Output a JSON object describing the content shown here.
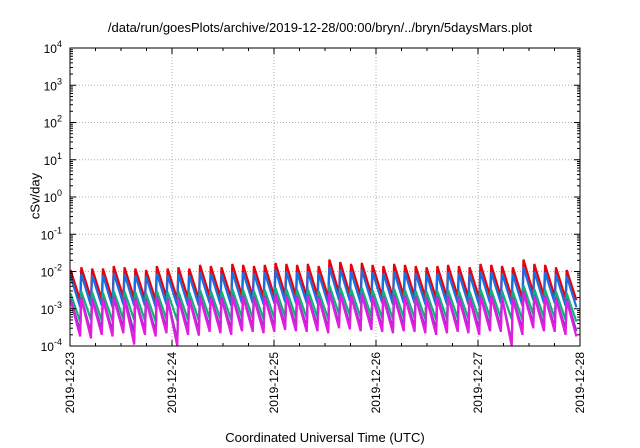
{
  "chart_data": {
    "type": "line",
    "title": "/data/run/goesPlots/archive/2019-12-28/00:00/bryn/../bryn/5daysMars.plot",
    "xlabel": "Coordinated Universal Time (UTC)",
    "ylabel": "cSv/day",
    "yscale": "log",
    "ylim": [
      0.0001,
      10000
    ],
    "y_ticks": [
      {
        "base": "10",
        "exp": "4"
      },
      {
        "base": "10",
        "exp": "3"
      },
      {
        "base": "10",
        "exp": "2"
      },
      {
        "base": "10",
        "exp": "1"
      },
      {
        "base": "10",
        "exp": "0"
      },
      {
        "base": "10",
        "exp": "-1"
      },
      {
        "base": "10",
        "exp": "-2"
      },
      {
        "base": "10",
        "exp": "-3"
      },
      {
        "base": "10",
        "exp": "-4"
      }
    ],
    "x_ticks": [
      "2019-12-23",
      "2019-12-24",
      "2019-12-25",
      "2019-12-26",
      "2019-12-27",
      "2019-12-28"
    ],
    "xlim": [
      "2019-12-23",
      "2019-12-28"
    ],
    "grid": true,
    "series": [
      {
        "color": "#e8000b",
        "peaks": [
          0.011,
          0.013,
          0.012,
          0.012,
          0.014,
          0.013,
          0.012,
          0.011,
          0.014,
          0.012,
          0.013,
          0.012,
          0.015,
          0.014,
          0.013,
          0.016,
          0.015,
          0.014,
          0.015,
          0.017,
          0.016,
          0.015,
          0.016,
          0.014,
          0.021,
          0.018,
          0.016,
          0.017,
          0.015,
          0.014,
          0.016,
          0.015,
          0.014,
          0.013,
          0.014,
          0.015,
          0.014,
          0.013,
          0.016,
          0.015,
          0.014,
          0.013,
          0.021,
          0.016,
          0.015,
          0.013,
          0.011
        ],
        "troughs": [
          0.0017,
          0.0019,
          0.0018,
          0.0017,
          0.002,
          0.0019,
          0.0018,
          0.0017,
          0.002,
          0.0018,
          0.0019,
          0.0018,
          0.0021,
          0.002,
          0.0019,
          0.0022,
          0.0021,
          0.002,
          0.0021,
          0.0023,
          0.0022,
          0.0021,
          0.0022,
          0.002,
          0.0026,
          0.0024,
          0.0022,
          0.0023,
          0.0021,
          0.002,
          0.0022,
          0.0021,
          0.002,
          0.0019,
          0.002,
          0.0021,
          0.002,
          0.0019,
          0.0022,
          0.0021,
          0.002,
          0.0019,
          0.0026,
          0.0022,
          0.0021,
          0.0019,
          0.0017
        ]
      },
      {
        "color": "#1a6fe0",
        "peaks": [
          0.0075,
          0.0085,
          0.008,
          0.008,
          0.009,
          0.0085,
          0.008,
          0.0075,
          0.009,
          0.008,
          0.0085,
          0.008,
          0.0095,
          0.009,
          0.0085,
          0.01,
          0.0095,
          0.009,
          0.0095,
          0.011,
          0.01,
          0.0095,
          0.01,
          0.009,
          0.013,
          0.0115,
          0.01,
          0.011,
          0.0095,
          0.009,
          0.01,
          0.0095,
          0.009,
          0.0085,
          0.009,
          0.0095,
          0.009,
          0.0085,
          0.01,
          0.0095,
          0.009,
          0.0085,
          0.013,
          0.01,
          0.0095,
          0.0085,
          0.0075
        ],
        "troughs": [
          0.0011,
          0.0012,
          0.0012,
          0.0011,
          0.0013,
          0.0012,
          0.0012,
          0.0011,
          0.0013,
          0.0012,
          0.0012,
          0.0012,
          0.0014,
          0.0013,
          0.0012,
          0.0014,
          0.0014,
          0.0013,
          0.0014,
          0.0015,
          0.0014,
          0.0014,
          0.0014,
          0.0013,
          0.0017,
          0.0016,
          0.0014,
          0.0015,
          0.0014,
          0.0013,
          0.0014,
          0.0014,
          0.0013,
          0.0012,
          0.0013,
          0.0014,
          0.0013,
          0.0012,
          0.0014,
          0.0014,
          0.0013,
          0.0012,
          0.0017,
          0.0014,
          0.0014,
          0.0012,
          0.0011
        ]
      },
      {
        "color": "#11b07a",
        "peaks": [
          0.0026,
          0.0029,
          0.0028,
          0.0027,
          0.003,
          0.0029,
          0.0028,
          0.0026,
          0.003,
          0.0028,
          0.0029,
          0.0028,
          0.0032,
          0.003,
          0.0029,
          0.0034,
          0.0032,
          0.003,
          0.0032,
          0.0036,
          0.0034,
          0.0032,
          0.0034,
          0.003,
          0.0042,
          0.0038,
          0.0034,
          0.0036,
          0.0032,
          0.003,
          0.0034,
          0.0032,
          0.003,
          0.0029,
          0.003,
          0.0032,
          0.003,
          0.0029,
          0.0034,
          0.0032,
          0.003,
          0.0029,
          0.0042,
          0.0034,
          0.0032,
          0.0029,
          0.0026
        ],
        "troughs": [
          0.00045,
          0.0005,
          0.00048,
          0.00046,
          0.00052,
          0.0005,
          0.00048,
          0.00045,
          0.00052,
          0.00048,
          0.0005,
          0.00048,
          0.00055,
          0.00052,
          0.0005,
          0.00058,
          0.00055,
          0.00052,
          0.00055,
          0.0006,
          0.00058,
          0.00055,
          0.00058,
          0.00052,
          0.0007,
          0.00065,
          0.00058,
          0.0006,
          0.00055,
          0.00052,
          0.00058,
          0.00055,
          0.00052,
          0.0005,
          0.00052,
          0.00055,
          0.00052,
          0.0005,
          0.00058,
          0.00055,
          0.00052,
          0.0005,
          0.0007,
          0.00058,
          0.00055,
          0.0005,
          0.00045
        ]
      },
      {
        "color": "#7a3fb5",
        "peaks": [
          0.0018,
          0.002,
          0.0019,
          0.0019,
          0.0021,
          0.002,
          0.0019,
          0.0018,
          0.0021,
          0.0019,
          0.002,
          0.0019,
          0.0022,
          0.0021,
          0.002,
          0.0023,
          0.0022,
          0.0021,
          0.0022,
          0.0025,
          0.0023,
          0.0022,
          0.0023,
          0.0021,
          0.0029,
          0.0026,
          0.0023,
          0.0025,
          0.0022,
          0.0021,
          0.0023,
          0.0022,
          0.0021,
          0.002,
          0.0021,
          0.0022,
          0.0021,
          0.002,
          0.0023,
          0.0022,
          0.0021,
          0.002,
          0.0029,
          0.0023,
          0.0022,
          0.002,
          0.0018
        ],
        "troughs": [
          0.00025,
          0.00022,
          0.00028,
          0.00024,
          0.0003,
          0.00022,
          0.00026,
          0.00024,
          0.0003,
          0.00014,
          0.00028,
          0.00026,
          0.00032,
          0.0003,
          0.00028,
          0.00034,
          0.00032,
          0.0003,
          0.00032,
          0.00036,
          0.00034,
          0.00032,
          0.00034,
          0.0003,
          0.0004,
          0.00038,
          0.00034,
          0.00036,
          0.00032,
          0.0003,
          0.00034,
          0.00032,
          0.0003,
          0.00028,
          0.0003,
          0.00032,
          0.0003,
          0.00028,
          0.00034,
          0.00032,
          0.00012,
          0.00028,
          0.0004,
          0.00034,
          0.00032,
          0.00028,
          0.00025
        ]
      },
      {
        "color": "#e21ce0",
        "peaks": [
          0.0017,
          0.0019,
          0.0018,
          0.0018,
          0.002,
          0.0019,
          0.0018,
          0.0017,
          0.002,
          0.0018,
          0.0019,
          0.0018,
          0.0021,
          0.002,
          0.0019,
          0.0022,
          0.0021,
          0.002,
          0.0021,
          0.0024,
          0.0022,
          0.0021,
          0.0022,
          0.002,
          0.0028,
          0.0025,
          0.0022,
          0.0024,
          0.0021,
          0.002,
          0.0022,
          0.0021,
          0.002,
          0.0019,
          0.002,
          0.0021,
          0.002,
          0.0019,
          0.0022,
          0.0021,
          0.002,
          0.0019,
          0.0028,
          0.0022,
          0.0021,
          0.0019,
          0.0017
        ],
        "troughs": [
          0.00018,
          0.00016,
          0.0002,
          0.00018,
          0.00022,
          0.00011,
          0.0002,
          0.00018,
          0.00022,
          0.0001,
          0.0002,
          0.00019,
          0.00024,
          0.00022,
          0.0002,
          0.00025,
          0.00024,
          0.00022,
          0.00024,
          0.00027,
          0.00025,
          0.00024,
          0.00025,
          0.00022,
          0.0003,
          0.00028,
          0.00025,
          0.00027,
          0.00024,
          0.00022,
          0.00025,
          0.00024,
          0.00022,
          0.0002,
          0.00022,
          0.00024,
          0.00022,
          0.0002,
          0.00025,
          0.00024,
          0.0001,
          0.0002,
          0.0003,
          0.00025,
          0.00024,
          0.0002,
          0.00018
        ]
      }
    ]
  }
}
